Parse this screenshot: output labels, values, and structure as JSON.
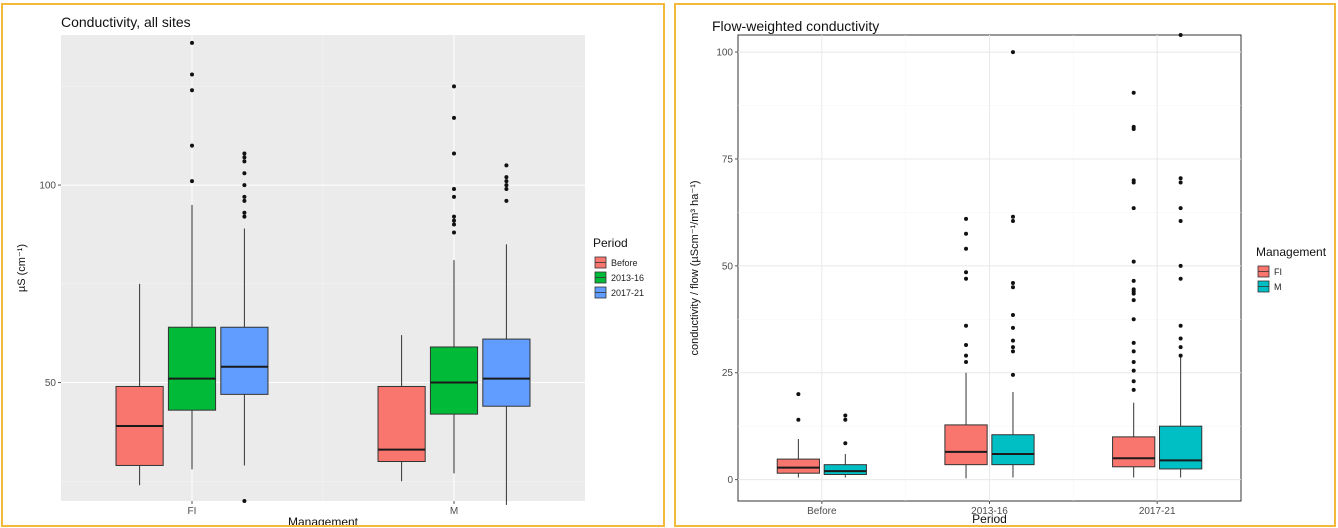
{
  "chart_data": [
    {
      "type": "box",
      "title": "Conductivity, all sites",
      "xlabel": "Management",
      "ylabel": "µS (cm⁻¹)",
      "categories": [
        "FI",
        "M"
      ],
      "y_ticks": [
        50,
        100
      ],
      "ylim": [
        20,
        138
      ],
      "theme": "grey-background",
      "legend": {
        "title": "Period",
        "placement": "right"
      },
      "series": [
        {
          "name": "Before",
          "color": "#f8766d",
          "boxes": [
            {
              "category": "FI",
              "whisker_low": 24,
              "q1": 29,
              "median": 39,
              "q3": 49,
              "whisker_high": 75,
              "outliers": []
            },
            {
              "category": "M",
              "whisker_low": 25,
              "q1": 30,
              "median": 33,
              "q3": 49,
              "whisker_high": 62,
              "outliers": []
            }
          ]
        },
        {
          "name": "2013-16",
          "color": "#00ba38",
          "boxes": [
            {
              "category": "FI",
              "whisker_low": 28,
              "q1": 43,
              "median": 51,
              "q3": 64,
              "whisker_high": 95,
              "outliers": [
                101,
                110,
                124,
                128,
                136
              ]
            },
            {
              "category": "M",
              "whisker_low": 27,
              "q1": 42,
              "median": 50,
              "q3": 59,
              "whisker_high": 81,
              "outliers": [
                88,
                90,
                91,
                92,
                97,
                99,
                108,
                117,
                125
              ]
            }
          ]
        },
        {
          "name": "2017-21",
          "color": "#619cff",
          "boxes": [
            {
              "category": "FI",
              "whisker_low": 29,
              "q1": 47,
              "median": 54,
              "q3": 64,
              "whisker_high": 89,
              "outliers": [
                20,
                92,
                93,
                96,
                97,
                100,
                103,
                106,
                107,
                108
              ]
            },
            {
              "category": "M",
              "whisker_low": 19,
              "q1": 44,
              "median": 51,
              "q3": 61,
              "whisker_high": 85,
              "outliers": [
                96,
                99,
                100,
                101,
                102,
                105
              ]
            }
          ]
        }
      ]
    },
    {
      "type": "box",
      "title": "Flow-weighted conductivity",
      "xlabel": "Period",
      "ylabel": "conductivity / flow (µScm⁻¹/m³ ha⁻¹)",
      "categories": [
        "Before",
        "2013-16",
        "2017-21"
      ],
      "y_ticks": [
        0,
        25,
        50,
        75,
        100
      ],
      "ylim": [
        -5,
        104
      ],
      "theme": "white-background",
      "legend": {
        "title": "Management",
        "placement": "right"
      },
      "series": [
        {
          "name": "FI",
          "color": "#f8766d",
          "boxes": [
            {
              "category": "Before",
              "whisker_low": 0.5,
              "q1": 1.5,
              "median": 2.8,
              "q3": 4.8,
              "whisker_high": 9.5,
              "outliers": [
                14,
                20
              ]
            },
            {
              "category": "2013-16",
              "whisker_low": 0.3,
              "q1": 3.5,
              "median": 6.5,
              "q3": 12.8,
              "whisker_high": 25,
              "outliers": [
                27.5,
                29,
                31.5,
                36,
                47,
                48.5,
                54,
                57.5,
                61
              ]
            },
            {
              "category": "2017-21",
              "whisker_low": 0.5,
              "q1": 3,
              "median": 5,
              "q3": 10,
              "whisker_high": 18,
              "outliers": [
                21,
                23,
                25.5,
                27.5,
                30,
                32,
                37.5,
                42,
                43.5,
                44,
                44.5,
                46.5,
                51,
                63.5,
                69.5,
                70,
                82,
                82.5,
                90.5
              ]
            }
          ]
        },
        {
          "name": "M",
          "color": "#00bfc4",
          "boxes": [
            {
              "category": "Before",
              "whisker_low": 0.5,
              "q1": 1.2,
              "median": 2,
              "q3": 3.5,
              "whisker_high": 6,
              "outliers": [
                8.5,
                14,
                15
              ]
            },
            {
              "category": "2013-16",
              "whisker_low": 0.5,
              "q1": 3.5,
              "median": 6,
              "q3": 10.5,
              "whisker_high": 20.5,
              "outliers": [
                24.5,
                30,
                31,
                32.5,
                35.5,
                38.5,
                45,
                46,
                60.5,
                61.5,
                100
              ]
            },
            {
              "category": "2017-21",
              "whisker_low": 0.5,
              "q1": 2.5,
              "median": 4.5,
              "q3": 12.5,
              "whisker_high": 29,
              "outliers": [
                29,
                31,
                33,
                36,
                47,
                50,
                60.5,
                63.5,
                69.5,
                70.5,
                104
              ]
            }
          ]
        }
      ]
    }
  ]
}
